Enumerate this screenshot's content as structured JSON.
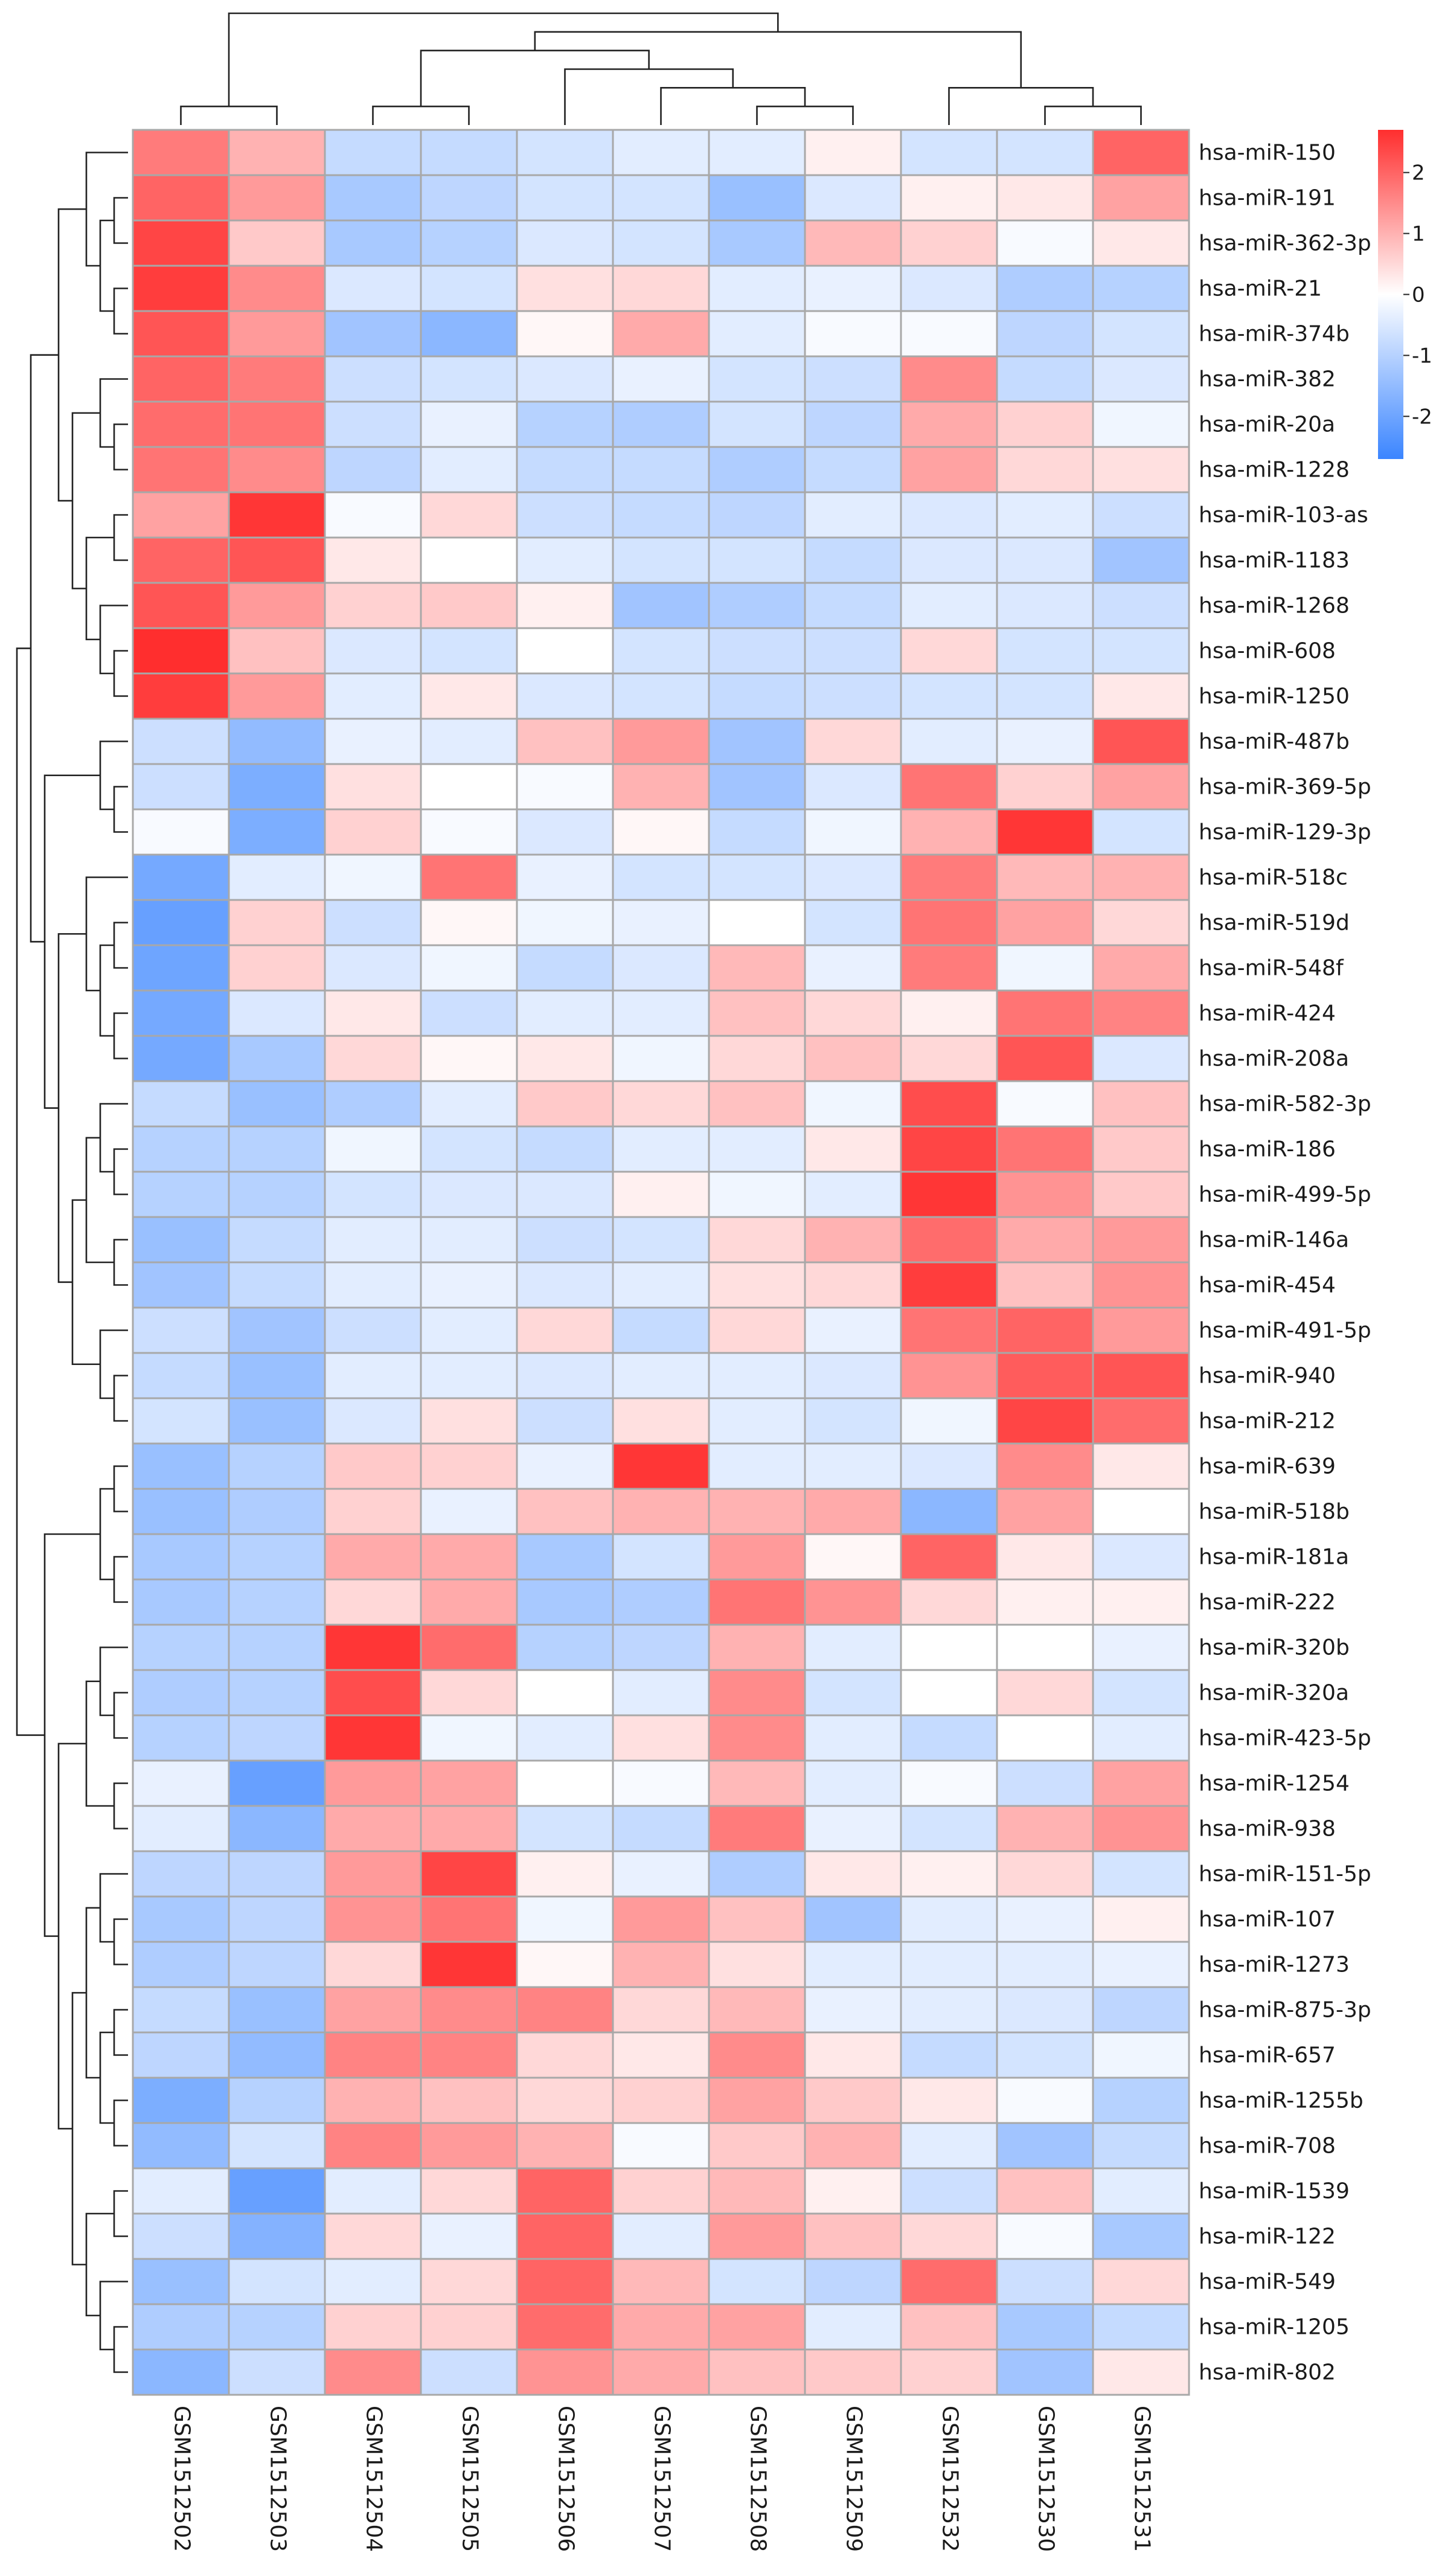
{
  "chart_data": {
    "type": "heatmap",
    "title": "",
    "columns": [
      "GSM1512502",
      "GSM1512503",
      "GSM1512504",
      "GSM1512505",
      "GSM1512506",
      "GSM1512507",
      "GSM1512508",
      "GSM1512509",
      "GSM1512532",
      "GSM1512530",
      "GSM1512531"
    ],
    "rows": [
      "hsa-miR-150",
      "hsa-miR-191",
      "hsa-miR-362-3p",
      "hsa-miR-21",
      "hsa-miR-374b",
      "hsa-miR-382",
      "hsa-miR-20a",
      "hsa-miR-1228",
      "hsa-miR-103-as",
      "hsa-miR-1183",
      "hsa-miR-1268",
      "hsa-miR-608",
      "hsa-miR-1250",
      "hsa-miR-487b",
      "hsa-miR-369-5p",
      "hsa-miR-129-3p",
      "hsa-miR-518c",
      "hsa-miR-519d",
      "hsa-miR-548f",
      "hsa-miR-424",
      "hsa-miR-208a",
      "hsa-miR-582-3p",
      "hsa-miR-186",
      "hsa-miR-499-5p",
      "hsa-miR-146a",
      "hsa-miR-454",
      "hsa-miR-491-5p",
      "hsa-miR-940",
      "hsa-miR-212",
      "hsa-miR-639",
      "hsa-miR-518b",
      "hsa-miR-181a",
      "hsa-miR-222",
      "hsa-miR-320b",
      "hsa-miR-320a",
      "hsa-miR-423-5p",
      "hsa-miR-1254",
      "hsa-miR-938",
      "hsa-miR-151-5p",
      "hsa-miR-107",
      "hsa-miR-1273",
      "hsa-miR-875-3p",
      "hsa-miR-657",
      "hsa-miR-1255b",
      "hsa-miR-708",
      "hsa-miR-1539",
      "hsa-miR-122",
      "hsa-miR-549",
      "hsa-miR-1205",
      "hsa-miR-802"
    ],
    "values": [
      [
        1.7,
        1.0,
        -0.8,
        -0.8,
        -0.6,
        -0.4,
        -0.4,
        0.2,
        -0.6,
        -0.6,
        2.0
      ],
      [
        2.0,
        1.3,
        -1.2,
        -0.9,
        -0.6,
        -0.6,
        -1.4,
        -0.5,
        0.2,
        0.3,
        1.2
      ],
      [
        2.4,
        0.7,
        -1.2,
        -1.0,
        -0.5,
        -0.6,
        -1.2,
        0.9,
        0.6,
        -0.1,
        0.3
      ],
      [
        2.5,
        1.5,
        -0.5,
        -0.6,
        0.4,
        0.5,
        -0.4,
        -0.3,
        -0.5,
        -1.1,
        -1.0
      ],
      [
        2.2,
        1.3,
        -1.3,
        -1.6,
        0.1,
        1.1,
        -0.4,
        -0.1,
        -0.1,
        -0.9,
        -0.6
      ],
      [
        2.0,
        1.7,
        -0.7,
        -0.6,
        -0.5,
        -0.3,
        -0.6,
        -0.7,
        1.5,
        -0.8,
        -0.5
      ],
      [
        1.9,
        1.8,
        -0.7,
        -0.3,
        -1.0,
        -1.1,
        -0.6,
        -0.9,
        1.1,
        0.6,
        -0.2
      ],
      [
        1.8,
        1.5,
        -0.9,
        -0.4,
        -0.8,
        -0.8,
        -1.1,
        -0.8,
        1.2,
        0.5,
        0.4
      ],
      [
        1.2,
        2.6,
        -0.1,
        0.5,
        -0.7,
        -0.8,
        -0.9,
        -0.4,
        -0.5,
        -0.4,
        -0.7
      ],
      [
        2.0,
        2.2,
        0.3,
        0.0,
        -0.4,
        -0.6,
        -0.6,
        -0.8,
        -0.5,
        -0.5,
        -1.3
      ],
      [
        2.2,
        1.3,
        0.6,
        0.7,
        0.2,
        -1.3,
        -1.1,
        -0.8,
        -0.4,
        -0.5,
        -0.7
      ],
      [
        2.8,
        0.8,
        -0.5,
        -0.6,
        0.0,
        -0.6,
        -0.7,
        -0.7,
        0.5,
        -0.6,
        -0.6
      ],
      [
        2.5,
        1.3,
        -0.4,
        0.3,
        -0.5,
        -0.6,
        -0.8,
        -0.7,
        -0.6,
        -0.6,
        0.3
      ],
      [
        -0.7,
        -1.5,
        -0.3,
        -0.4,
        0.8,
        1.3,
        -1.3,
        0.5,
        -0.4,
        -0.3,
        2.2
      ],
      [
        -0.7,
        -1.8,
        0.4,
        0.0,
        -0.1,
        1.0,
        -1.3,
        -0.5,
        1.8,
        0.6,
        1.2
      ],
      [
        -0.1,
        -1.8,
        0.6,
        -0.1,
        -0.5,
        0.1,
        -0.8,
        -0.2,
        1.0,
        2.6,
        -0.6
      ],
      [
        -1.9,
        -0.4,
        -0.2,
        1.8,
        -0.3,
        -0.6,
        -0.6,
        -0.5,
        1.7,
        0.9,
        1.0
      ],
      [
        -2.1,
        0.6,
        -0.7,
        0.1,
        -0.2,
        -0.3,
        0.0,
        -0.6,
        1.8,
        1.2,
        0.5
      ],
      [
        -2.0,
        0.6,
        -0.5,
        -0.2,
        -0.8,
        -0.5,
        0.9,
        -0.3,
        1.7,
        -0.2,
        1.1
      ],
      [
        -1.9,
        -0.5,
        0.3,
        -0.7,
        -0.4,
        -0.4,
        0.8,
        0.5,
        0.2,
        1.8,
        1.6
      ],
      [
        -1.9,
        -1.2,
        0.5,
        0.1,
        0.3,
        -0.2,
        0.5,
        0.8,
        0.5,
        2.2,
        -0.5
      ],
      [
        -0.8,
        -1.4,
        -1.1,
        -0.4,
        0.7,
        0.5,
        0.8,
        -0.2,
        2.3,
        -0.1,
        0.8
      ],
      [
        -1.0,
        -1.0,
        -0.2,
        -0.6,
        -0.8,
        -0.4,
        -0.4,
        0.3,
        2.4,
        1.8,
        0.7
      ],
      [
        -1.0,
        -1.0,
        -0.6,
        -0.5,
        -0.5,
        0.2,
        -0.2,
        -0.4,
        2.6,
        1.4,
        0.7
      ],
      [
        -1.4,
        -0.8,
        -0.4,
        -0.4,
        -0.7,
        -0.6,
        0.5,
        1.0,
        1.9,
        1.1,
        1.3
      ],
      [
        -1.3,
        -0.8,
        -0.4,
        -0.3,
        -0.5,
        -0.4,
        0.4,
        0.5,
        2.5,
        0.8,
        1.4
      ],
      [
        -0.7,
        -1.3,
        -0.7,
        -0.4,
        0.5,
        -0.8,
        0.5,
        -0.3,
        1.8,
        2.0,
        1.3
      ],
      [
        -0.8,
        -1.4,
        -0.4,
        -0.4,
        -0.5,
        -0.4,
        -0.4,
        -0.5,
        1.4,
        2.1,
        2.2
      ],
      [
        -0.6,
        -1.4,
        -0.5,
        0.4,
        -0.7,
        0.4,
        -0.4,
        -0.6,
        -0.2,
        2.4,
        1.9
      ],
      [
        -1.4,
        -1.0,
        0.7,
        0.6,
        -0.3,
        2.6,
        -0.4,
        -0.4,
        -0.5,
        1.5,
        0.3
      ],
      [
        -1.4,
        -1.1,
        0.6,
        -0.3,
        0.8,
        1.0,
        1.0,
        1.1,
        -1.6,
        1.2,
        0.0
      ],
      [
        -1.2,
        -1.0,
        1.1,
        1.1,
        -1.2,
        -0.6,
        1.3,
        0.1,
        2.0,
        0.3,
        -0.5
      ],
      [
        -1.2,
        -1.0,
        0.5,
        1.1,
        -1.2,
        -1.1,
        1.8,
        1.4,
        0.5,
        0.2,
        0.2
      ],
      [
        -1.0,
        -1.0,
        2.6,
        1.9,
        -1.0,
        -0.9,
        1.0,
        -0.4,
        0.0,
        0.0,
        -0.3
      ],
      [
        -1.1,
        -1.0,
        2.3,
        0.5,
        0.0,
        -0.4,
        1.5,
        -0.6,
        0.0,
        0.5,
        -0.6
      ],
      [
        -1.0,
        -0.9,
        2.6,
        -0.2,
        -0.4,
        0.4,
        1.5,
        -0.4,
        -0.8,
        0.0,
        -0.4
      ],
      [
        -0.3,
        -2.1,
        1.3,
        1.2,
        0.0,
        -0.1,
        0.9,
        -0.4,
        -0.1,
        -0.7,
        1.2
      ],
      [
        -0.4,
        -1.6,
        1.1,
        1.1,
        -0.6,
        -0.8,
        1.7,
        -0.3,
        -0.6,
        1.0,
        1.4
      ],
      [
        -0.9,
        -0.9,
        1.3,
        2.4,
        0.2,
        -0.3,
        -1.1,
        0.3,
        0.2,
        0.5,
        -0.6
      ],
      [
        -1.2,
        -0.9,
        1.4,
        1.8,
        -0.2,
        1.3,
        0.8,
        -1.3,
        -0.4,
        -0.3,
        0.2
      ],
      [
        -1.1,
        -0.9,
        0.5,
        2.6,
        0.1,
        1.0,
        0.4,
        -0.4,
        -0.4,
        -0.4,
        -0.3
      ],
      [
        -0.8,
        -1.4,
        1.2,
        1.5,
        1.6,
        0.5,
        0.9,
        -0.3,
        -0.4,
        -0.5,
        -0.9
      ],
      [
        -0.9,
        -1.5,
        1.6,
        1.6,
        0.5,
        0.3,
        1.5,
        0.3,
        -0.8,
        -0.6,
        -0.2
      ],
      [
        -1.8,
        -1.0,
        1.0,
        0.8,
        0.5,
        0.6,
        1.2,
        0.7,
        0.3,
        -0.1,
        -1.0
      ],
      [
        -1.5,
        -0.6,
        1.6,
        1.3,
        1.0,
        -0.1,
        0.7,
        1.0,
        -0.4,
        -1.3,
        -0.8
      ],
      [
        -0.4,
        -2.1,
        -0.4,
        0.5,
        2.0,
        0.6,
        0.9,
        0.2,
        -0.7,
        0.8,
        -0.4
      ],
      [
        -0.7,
        -1.7,
        0.5,
        -0.3,
        2.0,
        -0.4,
        1.3,
        0.8,
        0.5,
        -0.1,
        -1.2
      ],
      [
        -1.4,
        -0.6,
        -0.4,
        0.5,
        2.0,
        0.9,
        -0.6,
        -0.9,
        1.9,
        -0.7,
        0.5
      ],
      [
        -1.1,
        -1.0,
        0.6,
        0.6,
        1.9,
        1.1,
        1.2,
        -0.4,
        0.8,
        -1.2,
        -0.8
      ],
      [
        -1.6,
        -0.7,
        1.5,
        -0.7,
        1.4,
        1.1,
        0.8,
        0.7,
        0.6,
        -1.3,
        0.3
      ]
    ],
    "colorbar": {
      "min": -2.7,
      "max": 2.7,
      "ticks": [
        "2",
        "1",
        "0",
        "-1",
        "-2"
      ],
      "tick_values": [
        2,
        1,
        0,
        -1,
        -2
      ]
    },
    "colors": {
      "low": "#3b85ff",
      "mid": "#ffffff",
      "high": "#ff2e2e",
      "grid": "#a8a8a8",
      "dendrogram": "#222222"
    },
    "row_dendrogram": "(((((0,((1,2),(3,4))),((5,(6,7)),((8,9),(10,(11,12))))),((13,(14,15)),((16,((17,18),(19,20))),(((21,(22,23)),(24,25)),(26,(27,28)))))),((((29,30),(31,32)),(((33,(34,35)),(36,37)),(((38,(39,40)),((41,42),(43,44))),((45,46),(47,(48,49)))))))))",
    "col_dendrogram": "((0,1),(((2,3),((4,(5,(6,7))))),(8,(9,10))))"
  }
}
